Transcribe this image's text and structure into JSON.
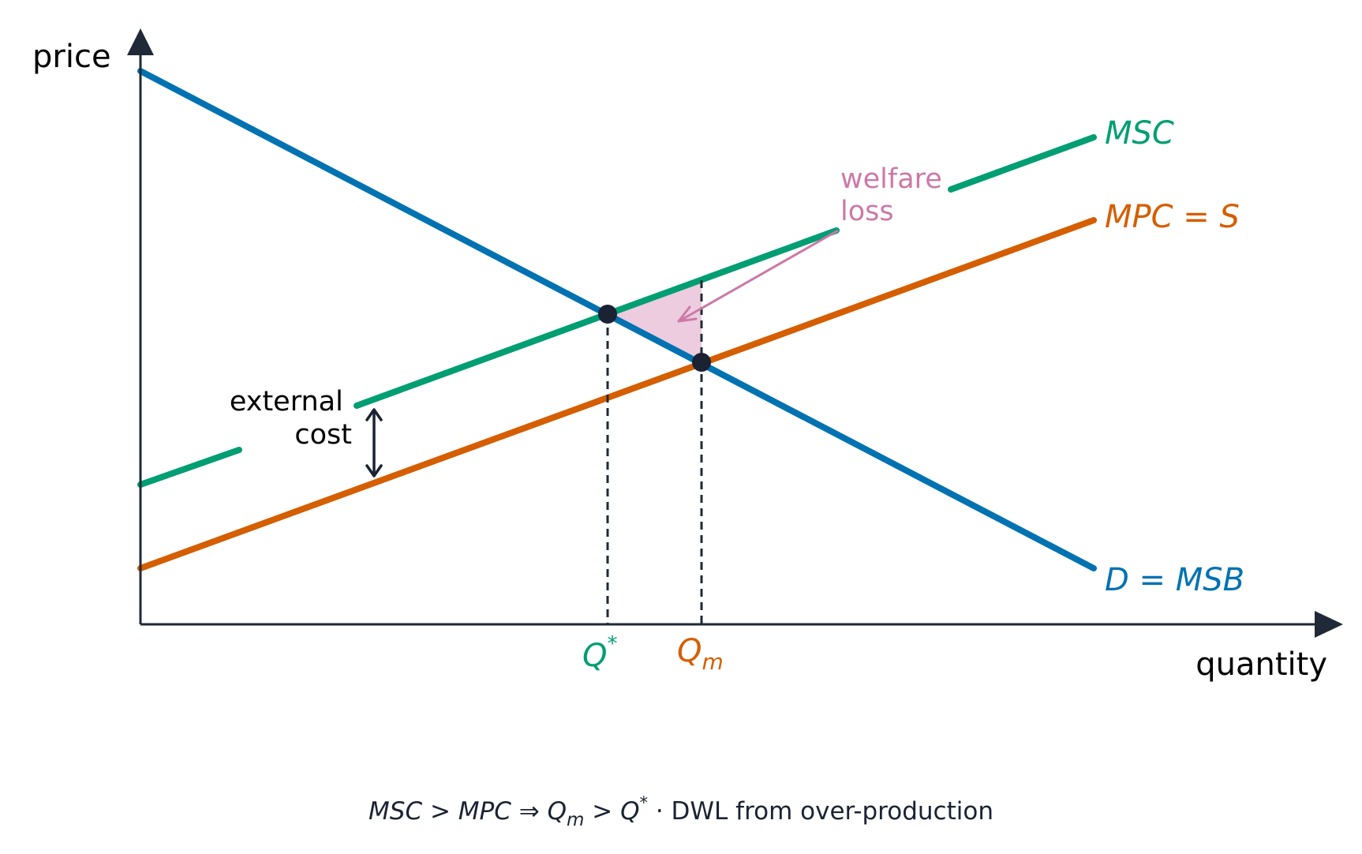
{
  "axes": {
    "y_label": "price",
    "x_label": "quantity"
  },
  "curves": {
    "msc": {
      "label": "MSC",
      "color": "#009e73"
    },
    "mpc": {
      "label": "MPC = S",
      "color": "#d55e00"
    },
    "demand": {
      "label": "D = MSB",
      "color": "#0072b2"
    }
  },
  "markers": {
    "q_star": {
      "label": "Q",
      "sup": "*",
      "color": "#009e73"
    },
    "q_m": {
      "label": "Q",
      "sub": "m",
      "color": "#d55e00"
    }
  },
  "annotations": {
    "welfare_loss": {
      "line1": "welfare",
      "line2": "loss",
      "color": "#cc79a7"
    },
    "external_cost": {
      "line1": "external",
      "line2": "cost",
      "color": "#000000"
    }
  },
  "caption": {
    "formula": {
      "msc": "MSC",
      "gt1": " > ",
      "mpc": "MPC",
      "implies": "  ⇒ ",
      "qm_q": "Q",
      "qm_sub": "m",
      "gt2": " > ",
      "qs_q": "Q",
      "qs_sup": "*"
    },
    "text": "  ·  DWL from over-production"
  },
  "colors": {
    "axis": "#1f2937",
    "point": "#1a2233",
    "dwl_fill": "#cc79a7"
  }
}
